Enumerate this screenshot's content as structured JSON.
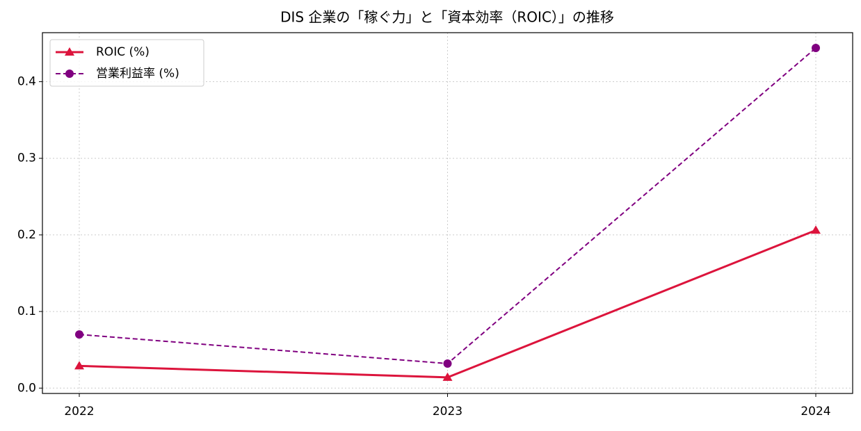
{
  "chart_data": {
    "type": "line",
    "title": "DIS 企業の「稼ぐ力」と「資本効率（ROIC）」の推移",
    "categories": [
      "2022",
      "2023",
      "2024"
    ],
    "series": [
      {
        "name": "ROIC (%)",
        "color": "#dc143c",
        "line_style": "solid",
        "marker": "triangle",
        "values": [
          0.029,
          0.014,
          0.206
        ]
      },
      {
        "name": "営業利益率 (%)",
        "color": "#800080",
        "line_style": "dashed",
        "marker": "circle",
        "values": [
          0.07,
          0.032,
          0.444
        ]
      }
    ],
    "ylim": [
      -0.007,
      0.464
    ],
    "yticks": [
      {
        "value": 0,
        "label": "0.0"
      },
      0.1,
      0.2,
      0.3,
      0.4
    ],
    "grid": true,
    "legend": "upper left"
  }
}
